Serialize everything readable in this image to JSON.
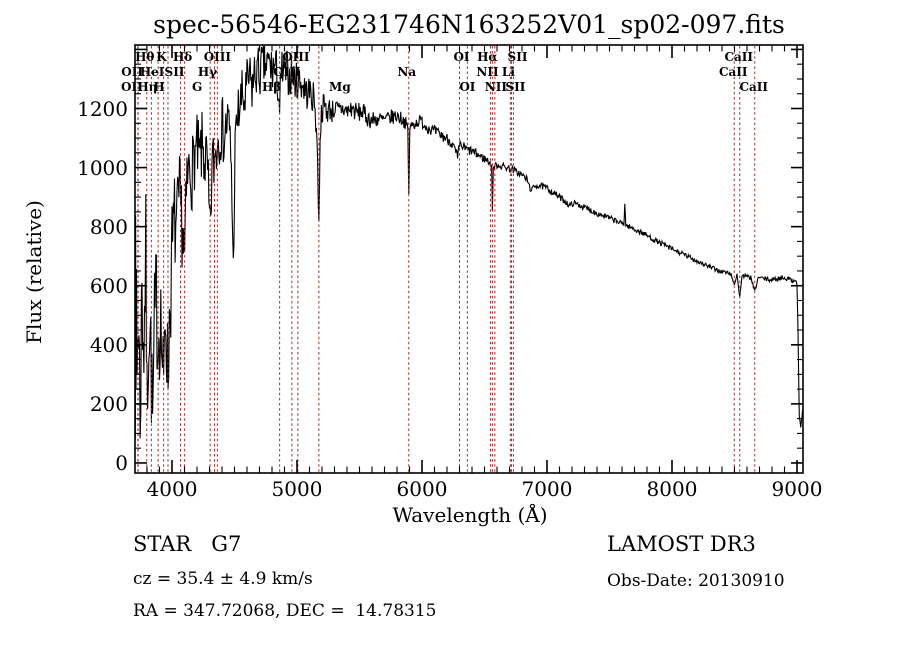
{
  "chart_data": {
    "type": "line",
    "title": "spec-56546-EG231746N163252V01_sp02-097.fits",
    "xlabel": "Wavelength (Å)",
    "ylabel": "Flux (relative)",
    "xlim": [
      3704,
      9048
    ],
    "ylim": [
      -34,
      1415
    ],
    "x_ticks": [
      4000,
      5000,
      6000,
      7000,
      8000,
      9000
    ],
    "x_minor_step": 100,
    "y_ticks": [
      0,
      200,
      400,
      600,
      800,
      1000,
      1200
    ],
    "y_major_step": 200,
    "y_major_max_drawn": 1400,
    "y_minor_step": 50,
    "grid": false,
    "legend": null,
    "line_color": "#000000",
    "spectral_line_color": "#9e3030",
    "noise_seed": 7,
    "sample_step": 5,
    "spectral_lines": [
      {
        "label": "OII",
        "wavelength": 3729,
        "row": 2,
        "dx": -6
      },
      {
        "label": "OII",
        "wavelength": 3727,
        "row": 3,
        "dx": -6
      },
      {
        "label": "Hθ",
        "wavelength": 3798,
        "row": 1,
        "dx": -2
      },
      {
        "label": "Hη",
        "wavelength": 3835,
        "row": 3,
        "dx": -4
      },
      {
        "label": "HeI",
        "wavelength": 3889,
        "row": 2,
        "dx": -6
      },
      {
        "label": "K",
        "wavelength": 3933,
        "row": 1,
        "dx": -2
      },
      {
        "label": "H",
        "wavelength": 3968,
        "row": 3,
        "dx": -9
      },
      {
        "label": "SII",
        "wavelength": 4068,
        "row": 2,
        "dx": -6
      },
      {
        "label": "Hδ",
        "wavelength": 4101,
        "row": 1,
        "dx": -2
      },
      {
        "label": "G",
        "wavelength": 4305,
        "row": 3,
        "dx": -13
      },
      {
        "label": "Hγ",
        "wavelength": 4340,
        "row": 2,
        "dx": -7
      },
      {
        "label": "OIII",
        "wavelength": 4363,
        "row": 1,
        "dx": 0
      },
      {
        "label": "Hβ",
        "wavelength": 4861,
        "row": 3,
        "dx": -8
      },
      {
        "label": "OIII",
        "wavelength": 4959,
        "row": 2,
        "dx": -5
      },
      {
        "label": "OIII",
        "wavelength": 5007,
        "row": 1,
        "dx": -2
      },
      {
        "label": "Mg",
        "wavelength": 5175,
        "row": 3,
        "dx": 21
      },
      {
        "label": "Na",
        "wavelength": 5894,
        "row": 2,
        "dx": -2
      },
      {
        "label": "OI",
        "wavelength": 6300,
        "row": 1,
        "dx": 2
      },
      {
        "label": "OI",
        "wavelength": 6363,
        "row": 3,
        "dx": 0
      },
      {
        "label": "NII",
        "wavelength": 6548,
        "row": 2,
        "dx": -3
      },
      {
        "label": "Hα",
        "wavelength": 6563,
        "row": 1,
        "dx": -5
      },
      {
        "label": "NII",
        "wavelength": 6583,
        "row": 3,
        "dx": 1
      },
      {
        "label": "Li",
        "wavelength": 6707,
        "row": 2,
        "dx": -2
      },
      {
        "label": "SII",
        "wavelength": 6716,
        "row": 1,
        "dx": 6
      },
      {
        "label": "SII",
        "wavelength": 6731,
        "row": 3,
        "dx": 2
      },
      {
        "label": "CaII",
        "wavelength": 8498,
        "row": 2,
        "dx": -1
      },
      {
        "label": "CaII",
        "wavelength": 8542,
        "row": 1,
        "dx": -1
      },
      {
        "label": "CaII",
        "wavelength": 8662,
        "row": 3,
        "dx": -1
      }
    ],
    "spectrum_anchors": [
      [
        3704,
        620,
        0
      ],
      [
        3706,
        80,
        0
      ],
      [
        3709,
        800,
        40
      ],
      [
        3712,
        200,
        120
      ],
      [
        3716,
        650,
        150
      ],
      [
        3720,
        350,
        250
      ],
      [
        3730,
        520,
        260
      ],
      [
        3745,
        180,
        200
      ],
      [
        3760,
        600,
        250
      ],
      [
        3775,
        420,
        280
      ],
      [
        3790,
        700,
        220
      ],
      [
        3800,
        200,
        180
      ],
      [
        3815,
        520,
        240
      ],
      [
        3830,
        380,
        220
      ],
      [
        3845,
        150,
        150
      ],
      [
        3860,
        420,
        240
      ],
      [
        3875,
        560,
        220
      ],
      [
        3890,
        420,
        200
      ],
      [
        3905,
        520,
        220
      ],
      [
        3920,
        380,
        200
      ],
      [
        3933,
        240,
        140
      ],
      [
        3945,
        520,
        200
      ],
      [
        3955,
        440,
        180
      ],
      [
        3968,
        300,
        140
      ],
      [
        3985,
        560,
        200
      ],
      [
        4000,
        700,
        200
      ],
      [
        4020,
        820,
        170
      ],
      [
        4040,
        780,
        180
      ],
      [
        4060,
        900,
        150
      ],
      [
        4080,
        820,
        160
      ],
      [
        4101,
        700,
        140
      ],
      [
        4120,
        950,
        130
      ],
      [
        4140,
        1000,
        120
      ],
      [
        4160,
        980,
        130
      ],
      [
        4180,
        1040,
        120
      ],
      [
        4200,
        1060,
        120
      ],
      [
        4220,
        1020,
        130
      ],
      [
        4240,
        1070,
        120
      ],
      [
        4260,
        1040,
        130
      ],
      [
        4280,
        1000,
        130
      ],
      [
        4305,
        760,
        120
      ],
      [
        4320,
        1000,
        120
      ],
      [
        4340,
        1030,
        120
      ],
      [
        4360,
        1080,
        110
      ],
      [
        4380,
        1120,
        110
      ],
      [
        4400,
        1140,
        110
      ],
      [
        4420,
        1100,
        120
      ],
      [
        4440,
        1160,
        110
      ],
      [
        4460,
        1120,
        110
      ],
      [
        4475,
        1000,
        90
      ],
      [
        4490,
        660,
        60
      ],
      [
        4505,
        1060,
        90
      ],
      [
        4520,
        1160,
        100
      ],
      [
        4540,
        1200,
        100
      ],
      [
        4560,
        1240,
        95
      ],
      [
        4580,
        1220,
        100
      ],
      [
        4600,
        1280,
        90
      ],
      [
        4620,
        1300,
        90
      ],
      [
        4640,
        1270,
        95
      ],
      [
        4660,
        1310,
        90
      ],
      [
        4680,
        1330,
        85
      ],
      [
        4700,
        1320,
        90
      ],
      [
        4720,
        1340,
        85
      ],
      [
        4740,
        1350,
        85
      ],
      [
        4760,
        1345,
        85
      ],
      [
        4780,
        1350,
        80
      ],
      [
        4800,
        1330,
        85
      ],
      [
        4820,
        1340,
        80
      ],
      [
        4840,
        1320,
        80
      ],
      [
        4861,
        1200,
        70
      ],
      [
        4880,
        1330,
        75
      ],
      [
        4900,
        1310,
        75
      ],
      [
        4920,
        1330,
        70
      ],
      [
        4940,
        1300,
        70
      ],
      [
        4960,
        1320,
        70
      ],
      [
        4980,
        1300,
        65
      ],
      [
        5000,
        1290,
        65
      ],
      [
        5020,
        1300,
        60
      ],
      [
        5040,
        1280,
        60
      ],
      [
        5060,
        1270,
        60
      ],
      [
        5080,
        1250,
        55
      ],
      [
        5100,
        1260,
        55
      ],
      [
        5120,
        1240,
        55
      ],
      [
        5140,
        1230,
        55
      ],
      [
        5160,
        1100,
        50
      ],
      [
        5175,
        800,
        40
      ],
      [
        5185,
        1120,
        50
      ],
      [
        5200,
        1200,
        50
      ],
      [
        5220,
        1210,
        45
      ],
      [
        5240,
        1190,
        45
      ],
      [
        5260,
        1200,
        40
      ],
      [
        5280,
        1190,
        40
      ],
      [
        5300,
        1200,
        40
      ],
      [
        5330,
        1190,
        38
      ],
      [
        5360,
        1200,
        36
      ],
      [
        5400,
        1190,
        35
      ],
      [
        5440,
        1200,
        34
      ],
      [
        5480,
        1185,
        34
      ],
      [
        5520,
        1190,
        32
      ],
      [
        5560,
        1170,
        32
      ],
      [
        5600,
        1160,
        30
      ],
      [
        5650,
        1165,
        28
      ],
      [
        5700,
        1160,
        27
      ],
      [
        5750,
        1170,
        26
      ],
      [
        5800,
        1175,
        25
      ],
      [
        5840,
        1165,
        24
      ],
      [
        5870,
        1150,
        22
      ],
      [
        5886,
        1130,
        15
      ],
      [
        5894,
        905,
        10
      ],
      [
        5902,
        1130,
        15
      ],
      [
        5920,
        1145,
        20
      ],
      [
        5950,
        1150,
        20
      ],
      [
        5990,
        1160,
        20
      ],
      [
        6030,
        1140,
        20
      ],
      [
        6070,
        1130,
        20
      ],
      [
        6110,
        1120,
        20
      ],
      [
        6150,
        1110,
        20
      ],
      [
        6190,
        1100,
        20
      ],
      [
        6230,
        1090,
        20
      ],
      [
        6270,
        1050,
        22
      ],
      [
        6285,
        1030,
        20
      ],
      [
        6300,
        1075,
        18
      ],
      [
        6330,
        1070,
        18
      ],
      [
        6360,
        1060,
        18
      ],
      [
        6400,
        1055,
        16
      ],
      [
        6440,
        1045,
        16
      ],
      [
        6480,
        1035,
        15
      ],
      [
        6520,
        1025,
        15
      ],
      [
        6550,
        1015,
        14
      ],
      [
        6557,
        1000,
        8
      ],
      [
        6563,
        860,
        6
      ],
      [
        6570,
        1000,
        8
      ],
      [
        6600,
        1010,
        13
      ],
      [
        6640,
        1005,
        13
      ],
      [
        6680,
        1000,
        12
      ],
      [
        6720,
        995,
        12
      ],
      [
        6760,
        985,
        12
      ],
      [
        6800,
        975,
        12
      ],
      [
        6840,
        960,
        12
      ],
      [
        6865,
        930,
        10
      ],
      [
        6880,
        925,
        10
      ],
      [
        6910,
        940,
        11
      ],
      [
        6950,
        938,
        11
      ],
      [
        7000,
        930,
        11
      ],
      [
        7050,
        915,
        11
      ],
      [
        7100,
        900,
        11
      ],
      [
        7150,
        885,
        11
      ],
      [
        7180,
        870,
        10
      ],
      [
        7210,
        880,
        10
      ],
      [
        7250,
        875,
        10
      ],
      [
        7300,
        865,
        10
      ],
      [
        7350,
        855,
        10
      ],
      [
        7400,
        845,
        10
      ],
      [
        7450,
        838,
        10
      ],
      [
        7500,
        828,
        10
      ],
      [
        7550,
        820,
        10
      ],
      [
        7590,
        812,
        9
      ],
      [
        7615,
        810,
        9
      ],
      [
        7622,
        880,
        4
      ],
      [
        7630,
        805,
        9
      ],
      [
        7680,
        795,
        9
      ],
      [
        7730,
        785,
        9
      ],
      [
        7780,
        775,
        9
      ],
      [
        7830,
        762,
        9
      ],
      [
        7880,
        750,
        9
      ],
      [
        7930,
        740,
        9
      ],
      [
        7980,
        728,
        9
      ],
      [
        8030,
        718,
        9
      ],
      [
        8080,
        708,
        9
      ],
      [
        8130,
        698,
        9
      ],
      [
        8180,
        688,
        9
      ],
      [
        8230,
        678,
        8
      ],
      [
        8280,
        668,
        8
      ],
      [
        8330,
        658,
        8
      ],
      [
        8380,
        650,
        8
      ],
      [
        8430,
        645,
        8
      ],
      [
        8470,
        640,
        8
      ],
      [
        8498,
        605,
        5
      ],
      [
        8520,
        638,
        7
      ],
      [
        8542,
        560,
        4
      ],
      [
        8560,
        635,
        7
      ],
      [
        8600,
        630,
        8
      ],
      [
        8630,
        628,
        7
      ],
      [
        8662,
        580,
        5
      ],
      [
        8690,
        628,
        7
      ],
      [
        8730,
        625,
        8
      ],
      [
        8780,
        620,
        8
      ],
      [
        8830,
        622,
        8
      ],
      [
        8880,
        628,
        8
      ],
      [
        8920,
        625,
        8
      ],
      [
        8960,
        618,
        8
      ],
      [
        8990,
        620,
        6
      ],
      [
        9000,
        600,
        5
      ],
      [
        9008,
        450,
        4
      ],
      [
        9018,
        160,
        4
      ],
      [
        9030,
        120,
        3
      ],
      [
        9045,
        180,
        3
      ]
    ]
  },
  "annotations": {
    "class_label": "STAR   G7",
    "survey": "LAMOST DR3",
    "cz": "cz = 35.4 ± 4.9 km/s",
    "obs_date": "Obs-Date: 20130910",
    "coordinates": "RA = 347.72068, DEC =  14.78315"
  }
}
